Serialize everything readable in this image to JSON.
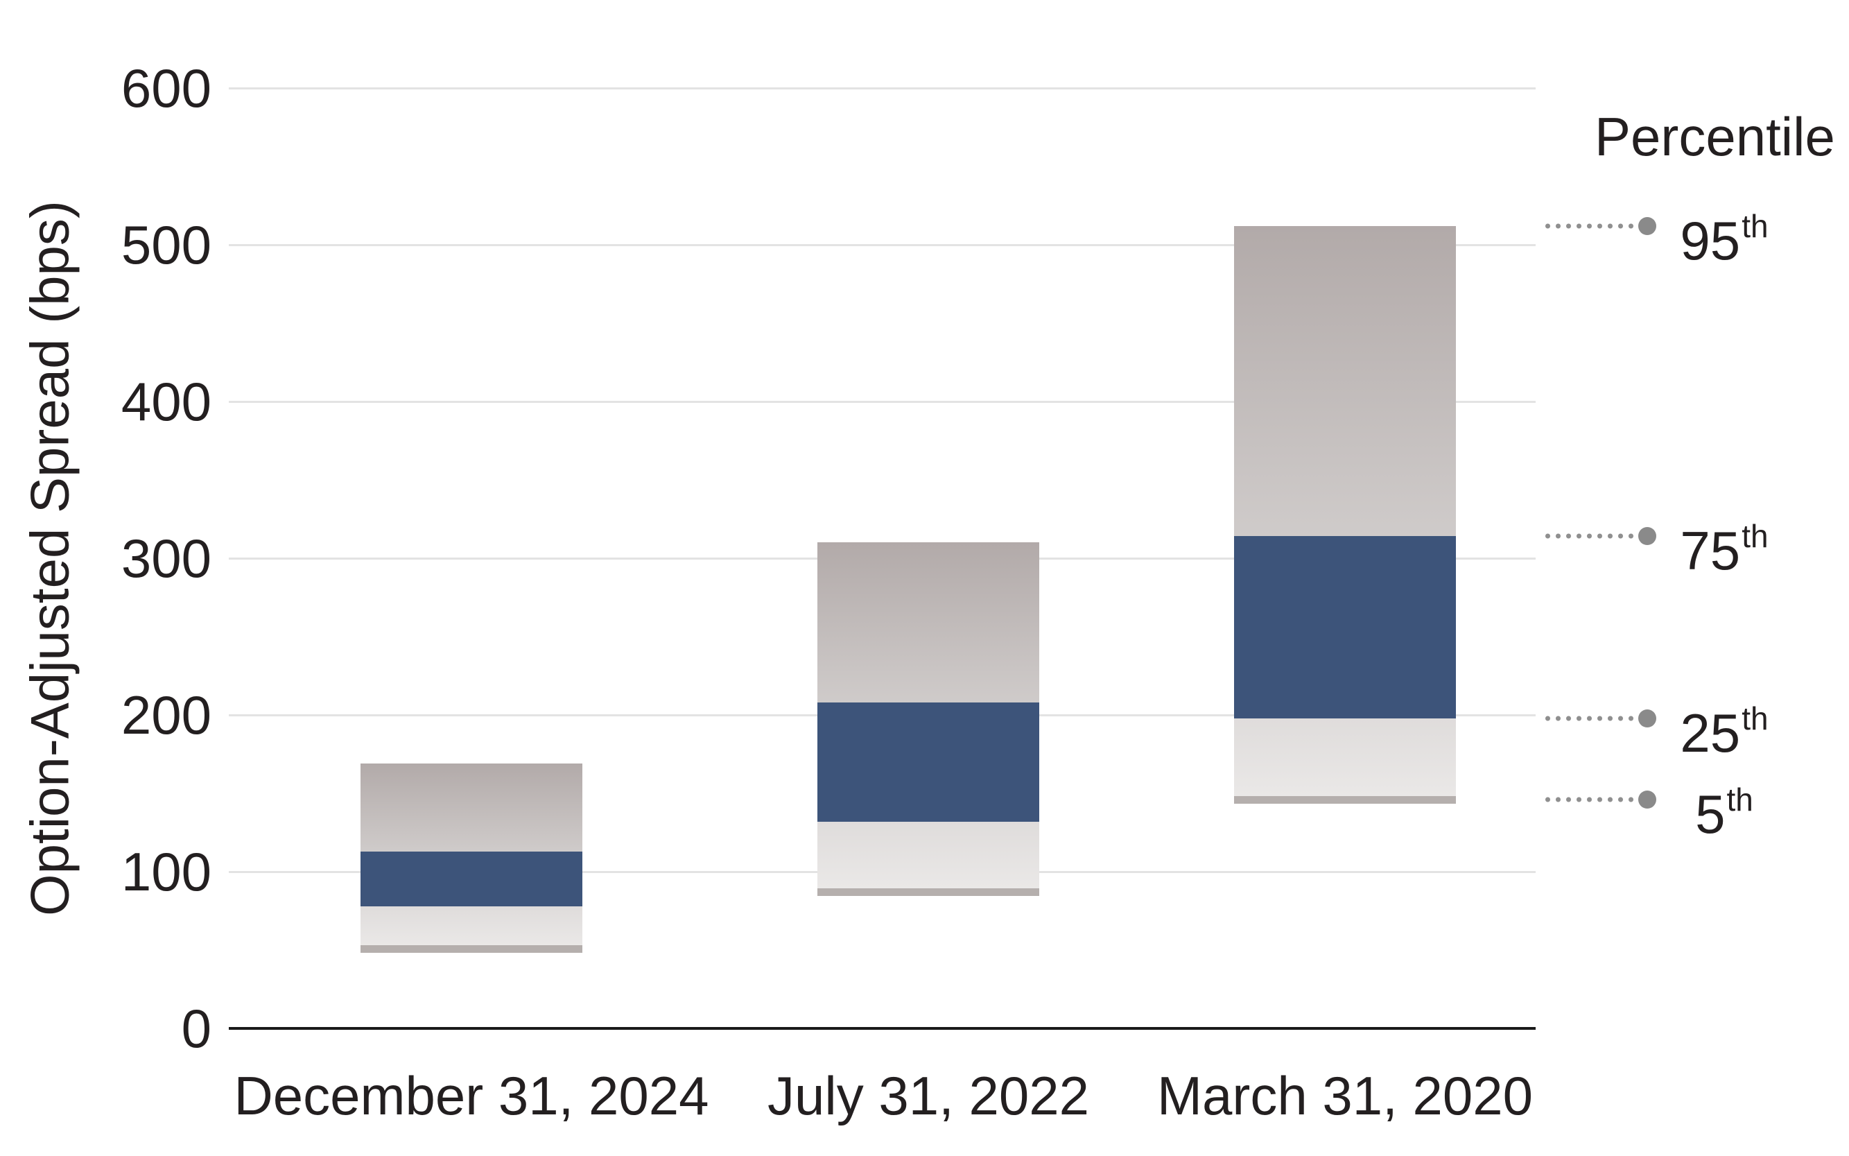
{
  "chart": {
    "y_axis_title": "Option-Adjusted Spread (bps)",
    "legend_title": "Percentile"
  },
  "colors": {
    "interquartile_blue": "#3D547A",
    "upper_band_top": "#B2AAA9",
    "upper_band_bottom": "#CFCBCA",
    "lower_band_top": "#DFDCDB",
    "lower_band_bottom": "#EAE8E7",
    "p5_strip": "#B5AFAD",
    "gridline": "#E3E3E3",
    "axis_line": "#1A1A1A",
    "leader_dot_small": "#8F8F8F",
    "leader_dot": "#8A8A8A",
    "text": "#231F20"
  },
  "chart_data": {
    "type": "bar",
    "subtype": "floating-percentile-range-bars",
    "title": "",
    "xlabel": "",
    "ylabel": "Option-Adjusted Spread (bps)",
    "ylim": [
      0,
      600
    ],
    "yticks": [
      0,
      100,
      200,
      300,
      400,
      500,
      600
    ],
    "grid": "horizontal",
    "legend_title": "Percentile",
    "legend_position": "right",
    "categories": [
      "December 31, 2024",
      "July 31, 2022",
      "March 31, 2020"
    ],
    "series": [
      {
        "name": "5th percentile",
        "values": [
          51,
          87,
          146
        ]
      },
      {
        "name": "25th percentile",
        "values": [
          78,
          132,
          198
        ]
      },
      {
        "name": "75th percentile",
        "values": [
          113,
          208,
          314
        ]
      },
      {
        "name": "95th percentile",
        "values": [
          169,
          310,
          512
        ]
      }
    ],
    "percentile_legend": [
      {
        "label_num": "95",
        "label_suffix": "th",
        "aligned_value": 512
      },
      {
        "label_num": "75",
        "label_suffix": "th",
        "aligned_value": 314
      },
      {
        "label_num": "25",
        "label_suffix": "th",
        "aligned_value": 198
      },
      {
        "label_num": "5",
        "label_suffix": "th",
        "aligned_value": 146
      }
    ]
  }
}
